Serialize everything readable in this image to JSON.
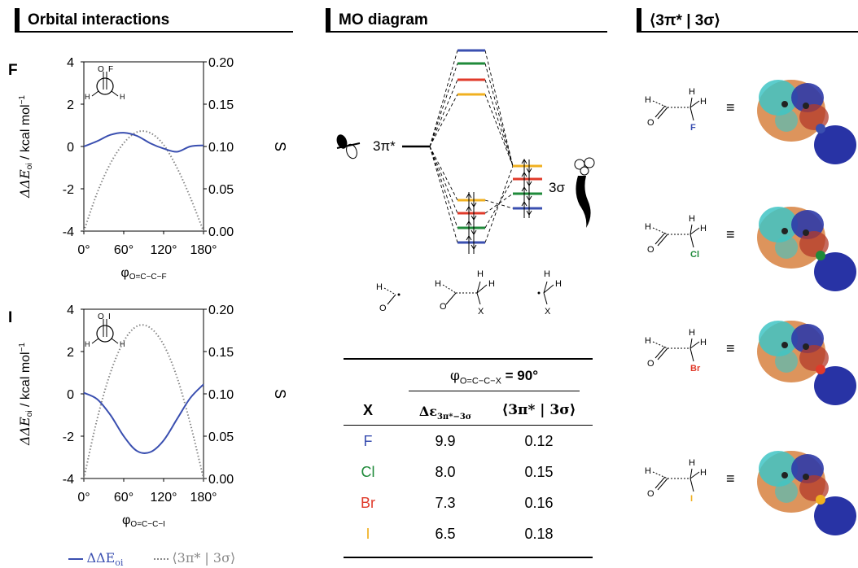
{
  "headers": {
    "orbital": "Orbital interactions",
    "mo": "MO diagram",
    "overlap": "⟨3π* | 3σ⟩"
  },
  "plots": [
    {
      "panel_label": "F",
      "newman_label": "F",
      "xlabel_main": "φ",
      "xlabel_sub": "O=C−C−F",
      "ylabel_main": "ΔΔE",
      "ylabel_sub": "oi",
      "ylabel_unit": " / kcal mol",
      "ylabel_exp": "−1",
      "y2label": "S",
      "y_ticks": [
        "4",
        "2",
        "0",
        "-2",
        "-4"
      ],
      "y2_ticks": [
        "0.20",
        "0.15",
        "0.10",
        "0.05",
        "0.00"
      ],
      "x_ticks": [
        "0°",
        "60°",
        "120°",
        "180°"
      ]
    },
    {
      "panel_label": "I",
      "newman_label": "I",
      "xlabel_main": "φ",
      "xlabel_sub": "O=C−C−I",
      "ylabel_main": "ΔΔE",
      "ylabel_sub": "oi",
      "ylabel_unit": " / kcal mol",
      "ylabel_exp": "−1",
      "y2label": "S",
      "y_ticks": [
        "4",
        "2",
        "0",
        "-2",
        "-4"
      ],
      "y2_ticks": [
        "0.20",
        "0.15",
        "0.10",
        "0.05",
        "0.00"
      ],
      "x_ticks": [
        "0°",
        "60°",
        "120°",
        "180°"
      ]
    }
  ],
  "legend": {
    "solid_main": "ΔΔE",
    "solid_sub": "oi",
    "dotted": "⟨3π* | 3σ⟩"
  },
  "mo": {
    "pi_label": "3π*",
    "sigma_label": "3σ",
    "fragment_labels": [
      "H",
      "O",
      "H",
      "O",
      "H",
      "H",
      "X",
      "H",
      "H",
      "X"
    ]
  },
  "table": {
    "group_header": "φ",
    "group_sub": "O=C−C−X",
    "group_value": " = 90°",
    "col_x": "X",
    "col_de_main": "Δε",
    "col_de_sub": "3π*−3σ",
    "col_s": "⟨3π* | 3σ⟩",
    "rows": [
      {
        "x": "F",
        "de": "9.9",
        "s": "0.12",
        "color": "#3a4fb0"
      },
      {
        "x": "Cl",
        "de": "8.0",
        "s": "0.15",
        "color": "#1f8a3a"
      },
      {
        "x": "Br",
        "de": "7.3",
        "s": "0.16",
        "color": "#e03a2a"
      },
      {
        "x": "I",
        "de": "6.5",
        "s": "0.18",
        "color": "#f0b020"
      }
    ]
  },
  "molecules": [
    {
      "halogen": "F",
      "color": "#3a4fb0"
    },
    {
      "halogen": "Cl",
      "color": "#1f8a3a"
    },
    {
      "halogen": "Br",
      "color": "#e03a2a"
    },
    {
      "halogen": "I",
      "color": "#f0b020"
    }
  ],
  "molecule_atoms": {
    "h": "H",
    "o": "O",
    "equiv": "≡"
  },
  "chart_data": [
    {
      "type": "line",
      "title": "",
      "panel": "F",
      "x": [
        0,
        20,
        40,
        60,
        80,
        100,
        120,
        140,
        160,
        180
      ],
      "xlim": [
        0,
        180
      ],
      "ylim": [
        -4,
        4
      ],
      "y2lim": [
        0,
        0.2
      ],
      "series": [
        {
          "name": "ΔΔEoi",
          "axis": "left",
          "color": "#3a4fb0",
          "values": [
            0,
            0.25,
            0.55,
            0.65,
            0.5,
            0.15,
            -0.1,
            -0.25,
            0.0,
            0.05
          ]
        },
        {
          "name": "⟨3π* | 3σ⟩",
          "axis": "right",
          "color": "#888888",
          "values": [
            0.0,
            0.045,
            0.08,
            0.104,
            0.117,
            0.116,
            0.102,
            0.075,
            0.04,
            0.0
          ]
        }
      ]
    },
    {
      "type": "line",
      "title": "",
      "panel": "I",
      "x": [
        0,
        20,
        40,
        60,
        80,
        100,
        120,
        140,
        160,
        180
      ],
      "xlim": [
        0,
        180
      ],
      "ylim": [
        -4,
        4
      ],
      "y2lim": [
        0,
        0.2
      ],
      "series": [
        {
          "name": "ΔΔEoi",
          "axis": "left",
          "color": "#3a4fb0",
          "values": [
            0.05,
            -0.25,
            -1.0,
            -2.0,
            -2.7,
            -2.75,
            -2.2,
            -1.2,
            -0.2,
            0.45
          ]
        },
        {
          "name": "⟨3π* | 3σ⟩",
          "axis": "right",
          "color": "#888888",
          "values": [
            0.0,
            0.07,
            0.125,
            0.162,
            0.18,
            0.178,
            0.158,
            0.12,
            0.065,
            0.0
          ]
        }
      ]
    }
  ]
}
